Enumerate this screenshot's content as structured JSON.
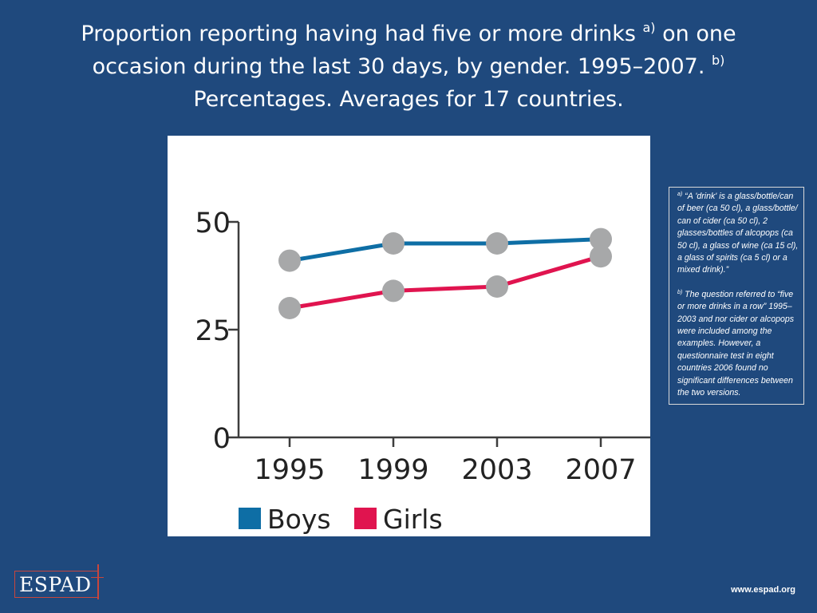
{
  "title": {
    "part1": "Proportion reporting having had five or more drinks ",
    "sup_a": "a)",
    "part2": " on one occasion during the last 30 days, by gender. 1995–2007. ",
    "sup_b": "b)",
    "part3": " Percentages. Averages for 17 countries."
  },
  "chart_data": {
    "type": "line",
    "x": [
      "1995",
      "1999",
      "2003",
      "2007"
    ],
    "yticks": [
      "0",
      "25",
      "50"
    ],
    "ylim": [
      0,
      50
    ],
    "series": [
      {
        "name": "Boys",
        "color": "#0e6ea5",
        "values": [
          41,
          45,
          45,
          46
        ]
      },
      {
        "name": "Girls",
        "color": "#e0144f",
        "values": [
          30,
          34,
          35,
          42
        ]
      }
    ],
    "marker_color": "#a7a8a9",
    "legend": "bottom-left",
    "grid": false
  },
  "footnotes": {
    "a_mark": "a)",
    "a_text": " “A 'drink' is a glass/bottle/can of beer (ca 50 cl), a glass/bottle/ can of cider (ca 50 cl), 2 glasses/bottles of alcopops (ca 50 cl), a glass of wine (ca 15 cl), a glass of spirits (ca 5 cl) or a mixed drink).”",
    "b_mark": "b)",
    "b_text": " The question referred to “five or more drinks in a row” 1995–2003 and nor cider or alcopops were included among the examples. However, a questionnaire test in eight countries 2006 found no significant differences between the two versions."
  },
  "logo": {
    "text": "ESPAD"
  },
  "website": "www.espad.org"
}
